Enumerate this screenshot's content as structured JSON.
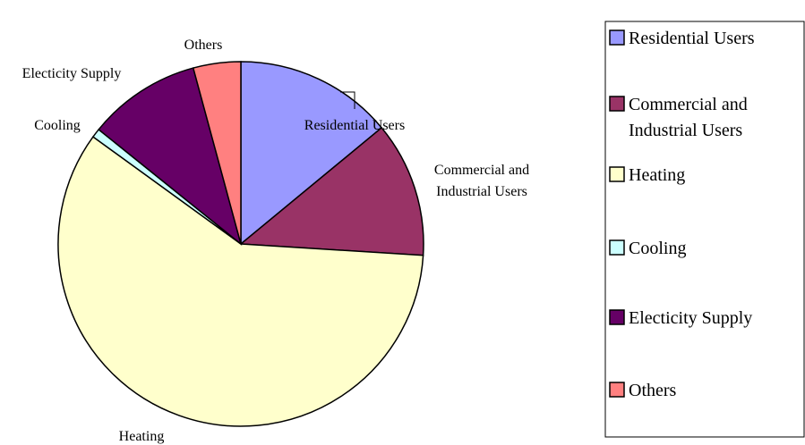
{
  "chart_data": {
    "type": "pie",
    "title": "",
    "legend_position": "right",
    "start_angle_deg": 0,
    "direction": "clockwise",
    "slices": [
      {
        "label": "Residential Users",
        "legend_lines": [
          "Residential Users"
        ],
        "chart_lines": [
          "Residential Users"
        ],
        "value": 14.0,
        "color": "#9999ff"
      },
      {
        "label": "Commercial and Industrial Users",
        "legend_lines": [
          "Commercial and",
          "Industrial Users"
        ],
        "chart_lines": [
          "Commercial and",
          "Industrial Users"
        ],
        "value": 12.0,
        "color": "#993366"
      },
      {
        "label": "Heating",
        "legend_lines": [
          "Heating"
        ],
        "chart_lines": [
          "Heating"
        ],
        "value": 59.0,
        "color": "#ffffcc"
      },
      {
        "label": "Cooling",
        "legend_lines": [
          "Cooling"
        ],
        "chart_lines": [
          "Cooling"
        ],
        "value": 0.8,
        "color": "#ccffff"
      },
      {
        "label": "Electicity Supply",
        "legend_lines": [
          "Electicity Supply"
        ],
        "chart_lines": [
          "Electicity Supply"
        ],
        "value": 10.0,
        "color": "#660066"
      },
      {
        "label": "Others",
        "legend_lines": [
          "Others"
        ],
        "chart_lines": [
          "Others"
        ],
        "value": 4.2,
        "color": "#ff8080"
      }
    ]
  }
}
